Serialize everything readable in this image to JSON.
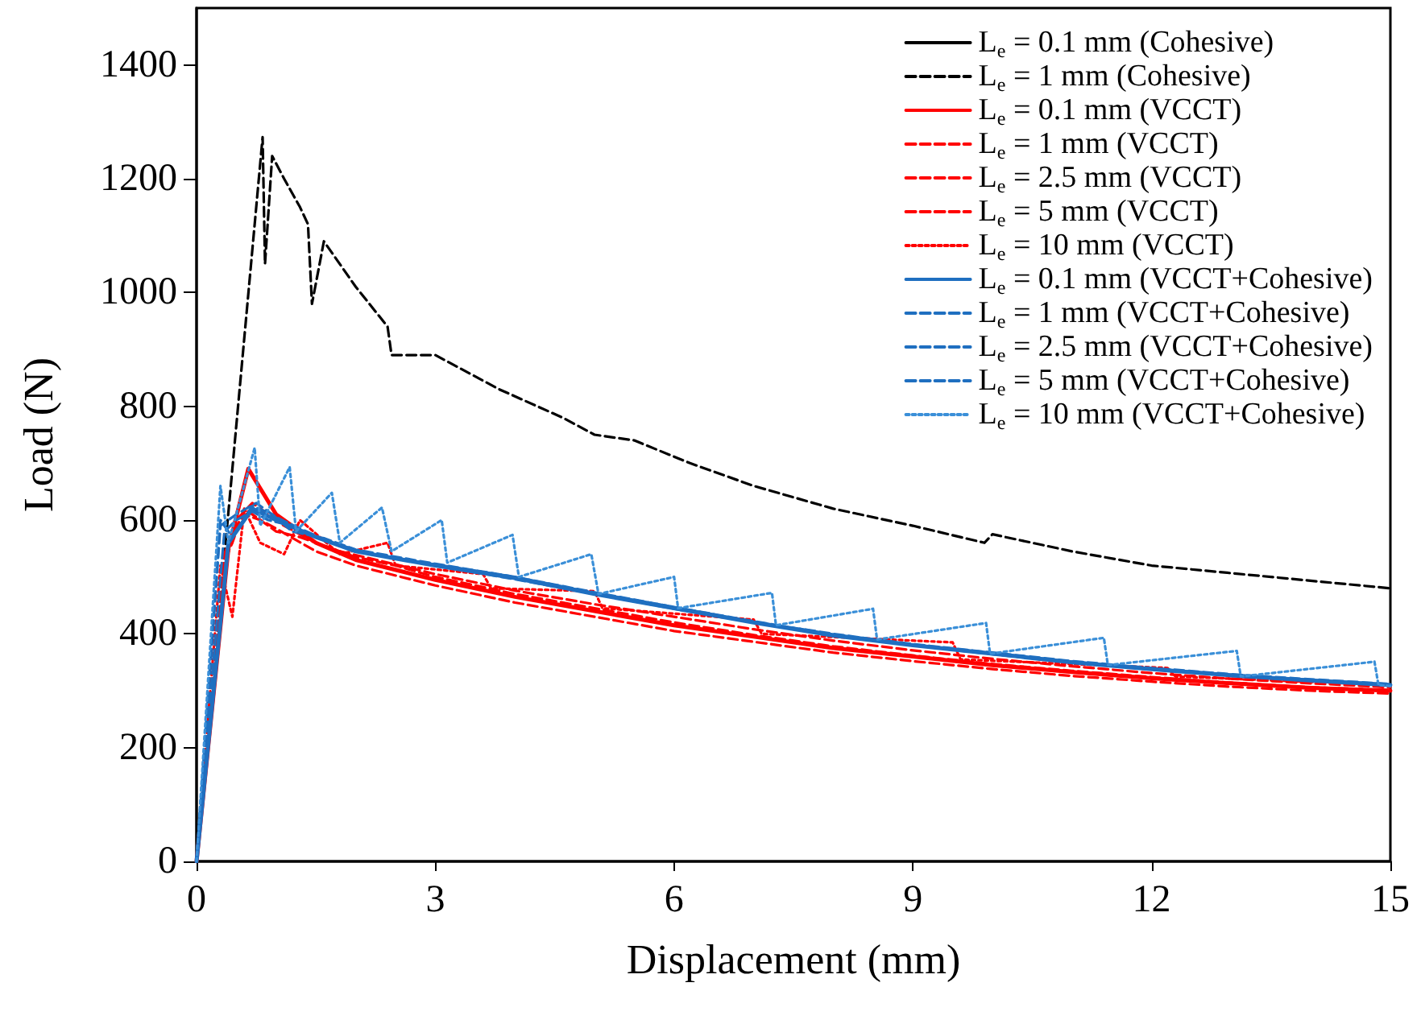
{
  "chart_data": {
    "type": "line",
    "xlabel": "Displacement (mm)",
    "ylabel": "Load (N)",
    "xlim": [
      0,
      15
    ],
    "xticks": [
      0,
      3,
      6,
      9,
      12,
      15
    ],
    "ylim": [
      0,
      1500
    ],
    "yticks": [
      0,
      200,
      400,
      600,
      800,
      1000,
      1200,
      1400
    ],
    "grid": false,
    "legend": "top right",
    "marker": "none",
    "series": [
      {
        "name": "L$_{e}$ = 0.1 mm (Cohesive)",
        "color": "#000000",
        "line_style": "solid"
      },
      {
        "name": "L$_{e}$ = 1 mm (Cohesive)",
        "color": "#000000",
        "line_style": "dashed",
        "x": [
          0,
          0.83,
          0.86,
          0.95,
          1.1,
          1.3,
          1.4,
          1.45,
          1.6,
          2,
          2.4,
          2.45,
          3,
          3.8,
          4.6,
          5,
          5.5,
          6.2,
          7,
          8,
          9,
          9.9,
          10,
          11,
          12,
          13.5,
          15
        ],
        "values": [
          0,
          1273,
          1050,
          1240,
          1200,
          1150,
          1120,
          980,
          1090,
          1010,
          940,
          890,
          890,
          830,
          780,
          750,
          740,
          700,
          660,
          620,
          590,
          560,
          575,
          545,
          520,
          500,
          480
        ]
      },
      {
        "name": "L$_{e}$ = 0.1 mm (VCCT)",
        "color": "#ff0000",
        "line_style": "solid",
        "x": [
          0,
          0.4,
          0.65,
          1,
          1.5,
          2,
          3,
          4,
          5,
          6,
          7,
          8,
          9,
          10,
          11,
          12,
          13,
          14,
          15
        ],
        "values": [
          0,
          550,
          690,
          610,
          560,
          530,
          495,
          465,
          440,
          415,
          395,
          375,
          360,
          345,
          333,
          322,
          313,
          305,
          300
        ]
      },
      {
        "name": "L$_{e}$ = 1 mm (VCCT)",
        "color": "#ff0000",
        "line_style": "dashed",
        "x": [
          0,
          0.35,
          0.5,
          0.6,
          0.8,
          1,
          1.5,
          2,
          3,
          4,
          5,
          6,
          7,
          8,
          9,
          10,
          11,
          12,
          13,
          14,
          15
        ],
        "values": [
          0,
          520,
          590,
          610,
          600,
          585,
          545,
          520,
          485,
          455,
          430,
          405,
          386,
          367,
          352,
          338,
          326,
          316,
          307,
          300,
          295
        ]
      },
      {
        "name": "L$_{e}$ = 2.5 mm (VCCT)",
        "color": "#ff0000",
        "line_style": "dashed",
        "x": [
          0,
          0.35,
          0.5,
          0.7,
          0.9,
          1.1,
          1.5,
          2,
          2.5,
          3,
          4,
          5,
          6,
          7,
          8,
          9,
          10,
          11,
          12,
          13,
          14,
          15
        ],
        "values": [
          0,
          540,
          600,
          630,
          610,
          590,
          560,
          535,
          520,
          500,
          470,
          445,
          420,
          398,
          378,
          362,
          347,
          335,
          324,
          314,
          306,
          301
        ]
      },
      {
        "name": "L$_{e}$ = 5 mm (VCCT)",
        "color": "#ff0000",
        "line_style": "dashed",
        "x": [
          0,
          0.35,
          0.45,
          0.6,
          0.8,
          1,
          1.3,
          1.8,
          2.5,
          3,
          4,
          5,
          6,
          7,
          8,
          9,
          10,
          11,
          12,
          13,
          14,
          15
        ],
        "values": [
          0,
          530,
          560,
          620,
          600,
          580,
          570,
          545,
          522,
          505,
          476,
          452,
          430,
          408,
          388,
          371,
          356,
          343,
          331,
          321,
          313,
          306
        ]
      },
      {
        "name": "L$_{e}$ = 10 mm (VCCT)",
        "color": "#ff0000",
        "line_style": "dotted",
        "x": [
          0,
          0.3,
          0.45,
          0.6,
          0.8,
          1.1,
          1.3,
          1.8,
          2.4,
          2.5,
          3.6,
          3.7,
          5,
          5.1,
          7,
          7.1,
          9.5,
          9.6,
          12.2,
          12.3,
          15
        ],
        "values": [
          0,
          520,
          430,
          620,
          560,
          540,
          600,
          540,
          560,
          520,
          505,
          480,
          475,
          445,
          425,
          400,
          385,
          355,
          340,
          325,
          310
        ]
      },
      {
        "name": "L$_{e}$ = 0.1 mm (VCCT+Cohesive)",
        "color": "#1f6fc0",
        "line_style": "solid",
        "x": [
          0,
          0.4,
          0.7,
          1,
          1.5,
          2,
          3,
          4,
          5,
          6,
          7,
          8,
          9,
          10,
          11,
          12,
          13,
          14,
          15
        ],
        "values": [
          0,
          560,
          620,
          600,
          570,
          545,
          520,
          498,
          470,
          445,
          420,
          397,
          380,
          365,
          350,
          338,
          327,
          318,
          310
        ]
      },
      {
        "name": "L$_{e}$ = 1 mm (VCCT+Cohesive)",
        "color": "#1f6fc0",
        "line_style": "dashed",
        "x": [
          0,
          0.35,
          0.5,
          0.7,
          0.9,
          1.2,
          1.6,
          2,
          3,
          4,
          5,
          6,
          7,
          8,
          9,
          10,
          11,
          12,
          13,
          14,
          15
        ],
        "values": [
          0,
          580,
          600,
          615,
          600,
          590,
          565,
          545,
          522,
          500,
          472,
          447,
          422,
          399,
          382,
          367,
          352,
          340,
          329,
          320,
          312
        ]
      },
      {
        "name": "L$_{e}$ = 2.5 mm (VCCT+Cohesive)",
        "color": "#1f6fc0",
        "line_style": "dashed",
        "x": [
          0,
          0.3,
          0.5,
          0.75,
          1,
          1.3,
          1.7,
          2.2,
          3,
          4,
          5,
          6,
          7,
          8,
          9,
          10,
          11,
          12,
          13,
          14,
          15
        ],
        "values": [
          0,
          590,
          610,
          630,
          605,
          585,
          560,
          540,
          520,
          496,
          470,
          444,
          420,
          398,
          380,
          364,
          350,
          338,
          327,
          318,
          310
        ]
      },
      {
        "name": "L$_{e}$ = 5 mm (VCCT+Cohesive)",
        "color": "#1f6fc0",
        "line_style": "dashed",
        "x": [
          0,
          0.3,
          0.45,
          0.7,
          0.95,
          1.2,
          1.6,
          2,
          3,
          4,
          5,
          6,
          7,
          8,
          9,
          10,
          11,
          12,
          13,
          14,
          15
        ],
        "values": [
          0,
          600,
          570,
          625,
          610,
          580,
          568,
          548,
          523,
          500,
          473,
          447,
          421,
          400,
          381,
          366,
          351,
          339,
          328,
          319,
          311
        ]
      },
      {
        "name": "L$_{e}$ = 10 mm (VCCT+Cohesive)",
        "color": "#3a8fd8",
        "line_style": "dotted",
        "x": [
          0,
          0.3,
          0.4,
          0.73,
          0.8,
          1.17,
          1.25,
          1.7,
          1.8,
          2.33,
          2.45,
          3.08,
          3.15,
          3.97,
          4.05,
          4.96,
          5.05,
          6.0,
          6.05,
          7.23,
          7.28,
          8.5,
          8.55,
          9.92,
          9.97,
          11.4,
          11.45,
          13.07,
          13.12,
          14.8,
          14.85,
          15
        ],
        "values": [
          0,
          660,
          560,
          727,
          590,
          693,
          580,
          648,
          560,
          622,
          545,
          600,
          525,
          574,
          500,
          540,
          470,
          500,
          445,
          472,
          415,
          444,
          390,
          419,
          365,
          393,
          345,
          370,
          325,
          351,
          310,
          308
        ]
      }
    ]
  }
}
